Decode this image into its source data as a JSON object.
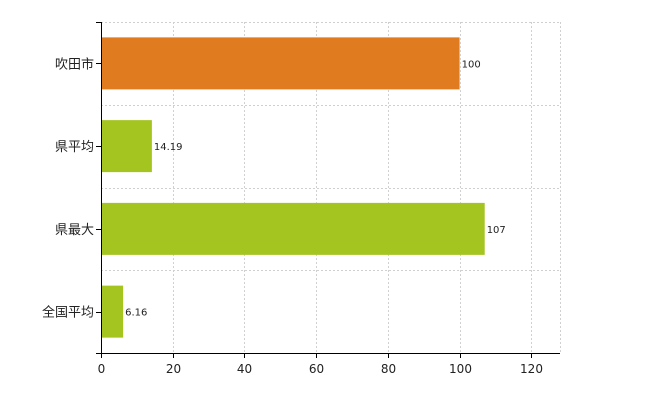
{
  "chart_data": {
    "type": "bar",
    "orientation": "horizontal",
    "categories": [
      "吹田市",
      "県平均",
      "県最大",
      "全国平均"
    ],
    "values": [
      100,
      14.19,
      107,
      6.16
    ],
    "value_labels": [
      "100",
      "14.19",
      "107",
      "6.16"
    ],
    "bar_colors": [
      "#e07b1f",
      "#a4c520",
      "#a4c520",
      "#a4c520"
    ],
    "xlim": [
      0,
      128
    ],
    "xticks": [
      0,
      20,
      40,
      60,
      80,
      100,
      120
    ],
    "xtick_labels": [
      "0",
      "20",
      "40",
      "60",
      "80",
      "100",
      "120"
    ],
    "grid": true,
    "title": "",
    "xlabel": "",
    "ylabel": ""
  }
}
